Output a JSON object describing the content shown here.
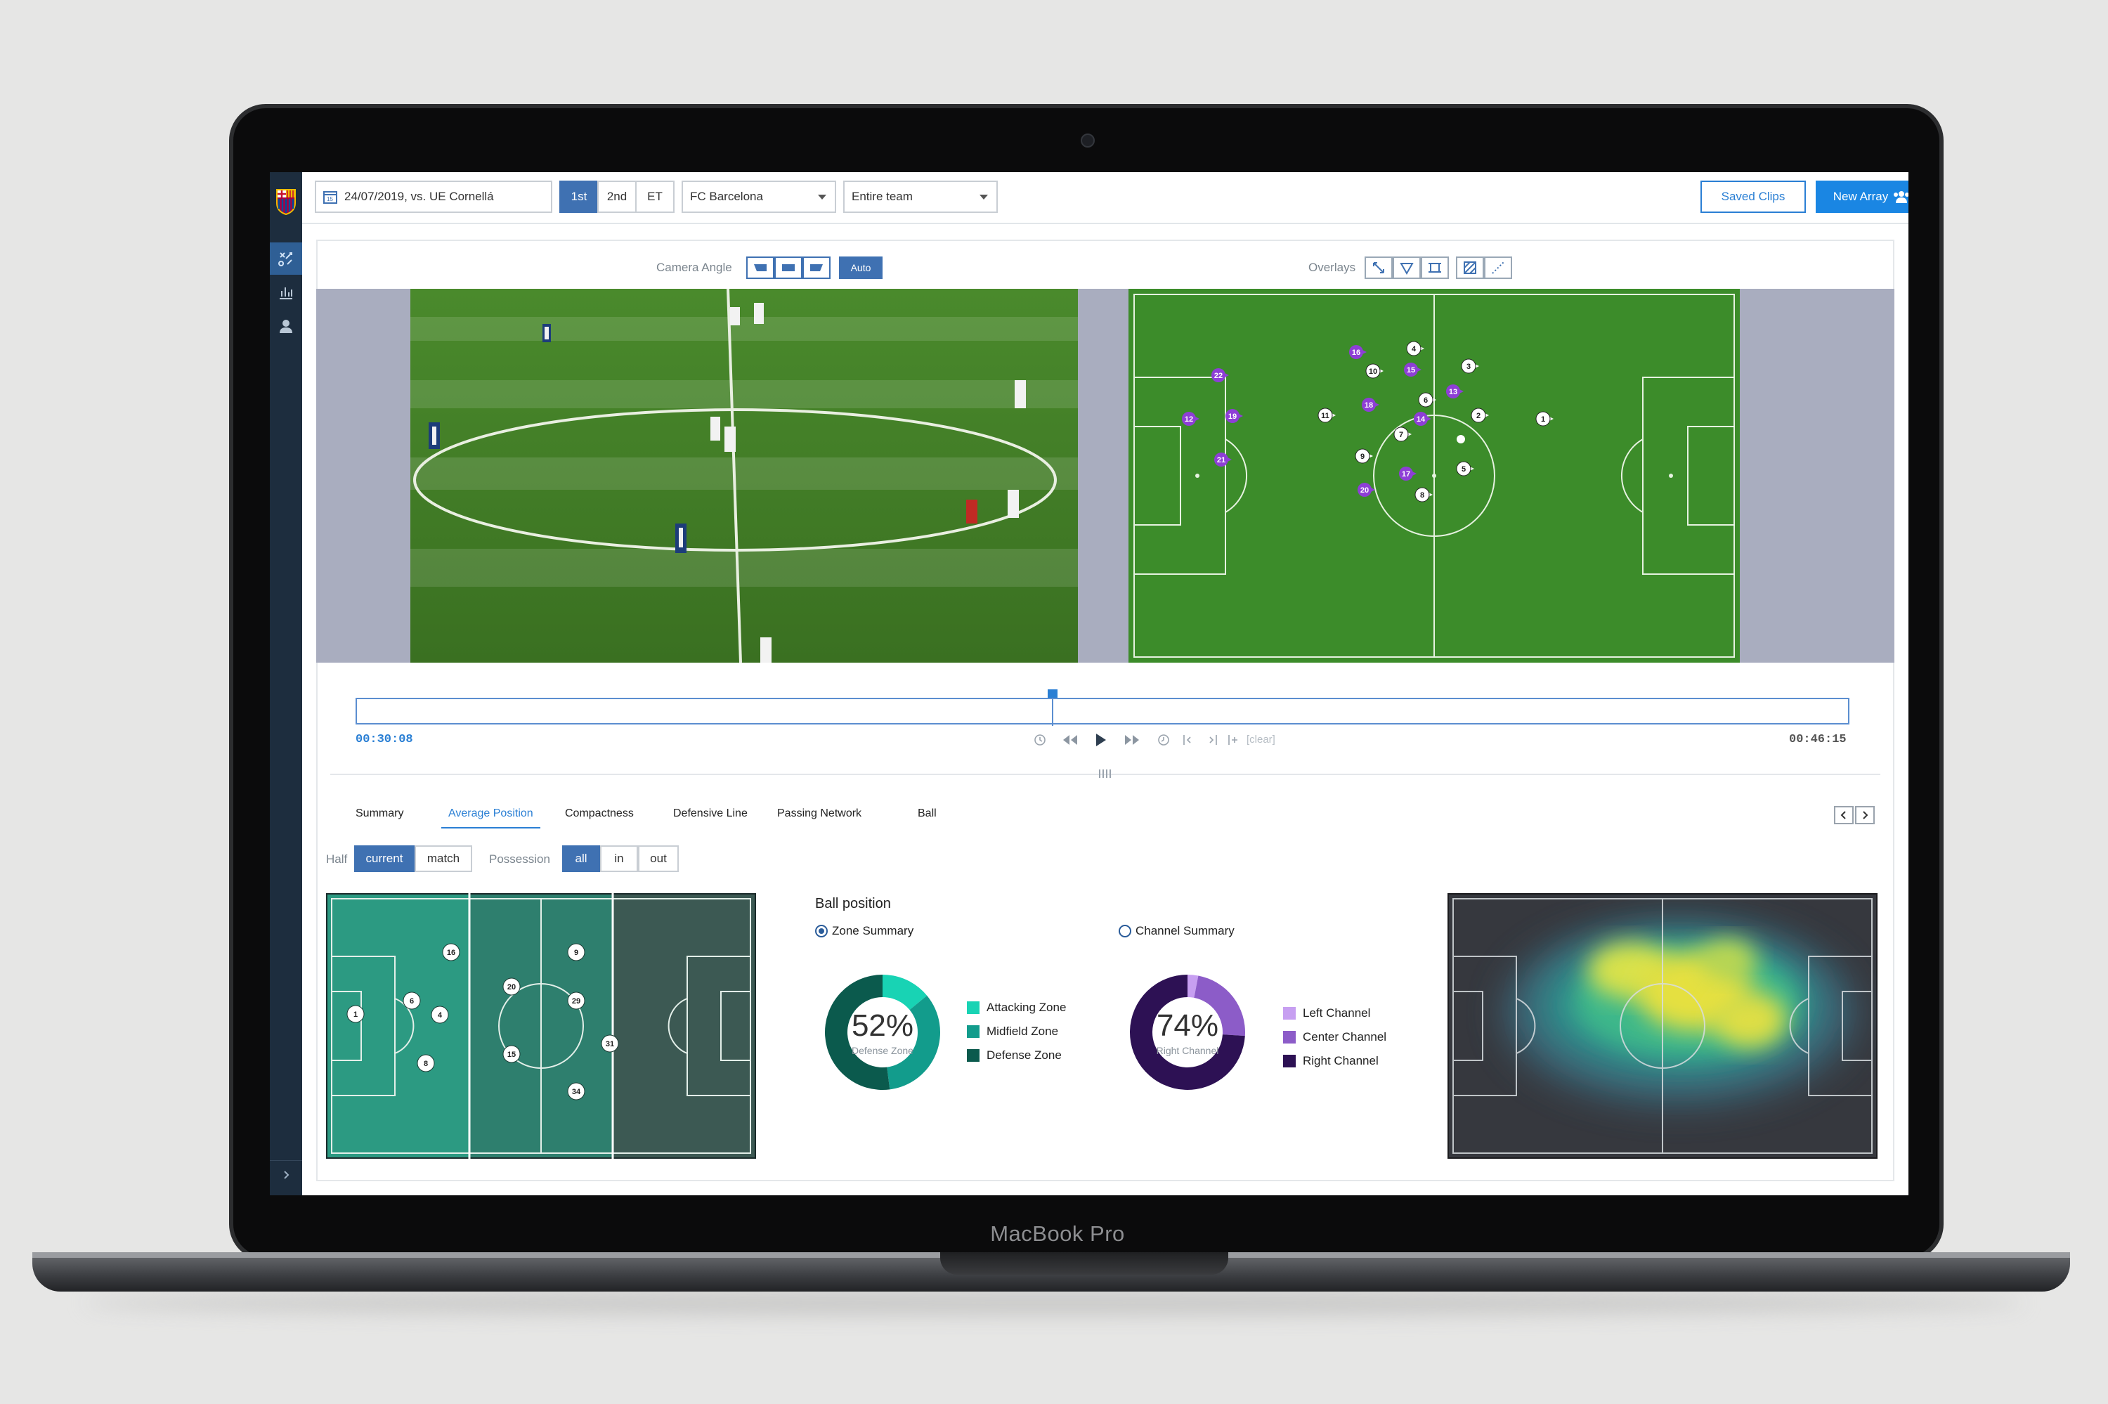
{
  "device": {
    "brand": "MacBook Pro"
  },
  "topbar": {
    "match": "24/07/2019, vs. UE Cornellá",
    "halves": [
      "1st",
      "2nd",
      "ET"
    ],
    "active_half": "1st",
    "team": "FC Barcelona",
    "scope": "Entire team",
    "saved_clips": "Saved Clips",
    "new_array": "New Array"
  },
  "viewer": {
    "camera_angle_label": "Camera Angle",
    "auto": "Auto",
    "overlays_label": "Overlays"
  },
  "pitch_players": {
    "team_a": [
      "16",
      "22",
      "15",
      "13",
      "18",
      "12",
      "19",
      "14",
      "21",
      "17",
      "20"
    ],
    "team_b": [
      "4",
      "3",
      "10",
      "6",
      "11",
      "2",
      "1",
      "7",
      "9",
      "5",
      "8"
    ]
  },
  "timeline": {
    "start": "00:30:08",
    "end": "00:46:15",
    "clear": "[clear]",
    "playhead_fraction": 0.466
  },
  "tabs": {
    "items": [
      "Summary",
      "Average Position",
      "Compactness",
      "Defensive Line",
      "Passing Network",
      "Ball"
    ],
    "active": "Average Position"
  },
  "filters": {
    "half_label": "Half",
    "half_options": [
      "current",
      "match"
    ],
    "possession_label": "Possession",
    "possession_options": [
      "all",
      "in",
      "out"
    ]
  },
  "avg_position_players": [
    "16",
    "9",
    "1",
    "6",
    "4",
    "20",
    "29",
    "8",
    "15",
    "31",
    "34"
  ],
  "ball_position": {
    "title": "Ball position",
    "zone_radio": "Zone Summary",
    "channel_radio": "Channel Summary",
    "zone_percent": "52%",
    "zone_caption": "Defense Zone",
    "channel_percent": "74%",
    "channel_caption": "Right Channel"
  },
  "chart_data": [
    {
      "type": "pie",
      "title": "Zone Summary",
      "categories": [
        "Attacking Zone",
        "Midfield Zone",
        "Defense Zone"
      ],
      "values": [
        14,
        34,
        52
      ],
      "colors": [
        "#18d3b4",
        "#129c8c",
        "#0b5a4d"
      ]
    },
    {
      "type": "pie",
      "title": "Channel Summary",
      "categories": [
        "Left Channel",
        "Center Channel",
        "Right Channel"
      ],
      "values": [
        3,
        23,
        74
      ],
      "colors": [
        "#c79ff1",
        "#8c5cc8",
        "#2d1154"
      ]
    }
  ],
  "colors": {
    "accent": "#1a86e3",
    "active": "#3f71b2",
    "sidebar": "#1d2d3e",
    "team_a": "#8e3ed6"
  }
}
